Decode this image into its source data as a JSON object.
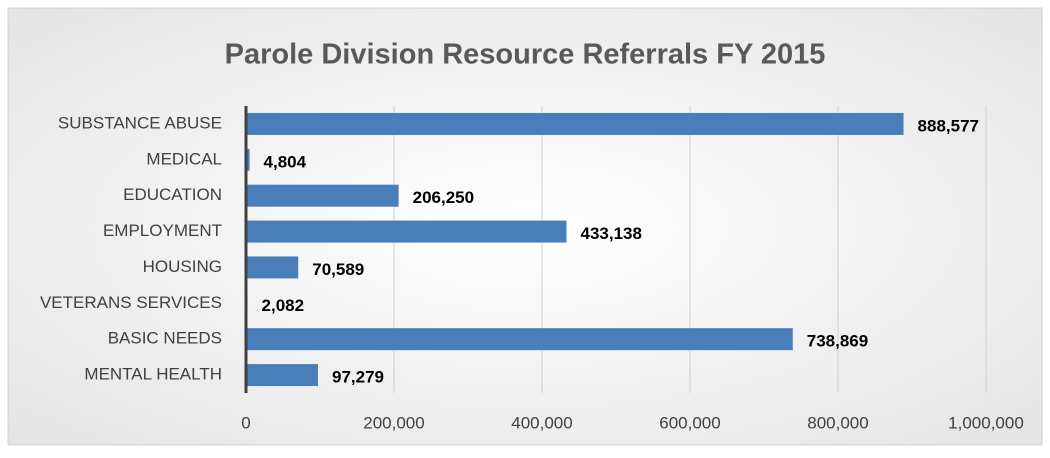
{
  "chart_data": {
    "type": "barh",
    "title": "Parole Division Resource Referrals FY 2015",
    "categories": [
      "SUBSTANCE ABUSE",
      "MEDICAL",
      "EDUCATION",
      "EMPLOYMENT",
      "HOUSING",
      "VETERANS SERVICES",
      "BASIC NEEDS",
      "MENTAL HEALTH"
    ],
    "values": [
      888577,
      4804,
      206250,
      433138,
      70589,
      2082,
      738869,
      97279
    ],
    "value_labels": [
      "888,577",
      "4,804",
      "206,250",
      "433,138",
      "70,589",
      "2,082",
      "738,869",
      "97,279"
    ],
    "color": "#4a7ebb",
    "xlim": [
      0,
      1000000
    ],
    "xticks": [
      0,
      {
        "value": 200000,
        "label": "200,000"
      },
      {
        "value": 400000,
        "label": "400,000"
      },
      {
        "value": 600000,
        "label": "600,000"
      },
      {
        "value": 800000,
        "label": "800,000"
      },
      {
        "value": 1000000,
        "label": "1,000,000"
      }
    ],
    "grid": true
  }
}
